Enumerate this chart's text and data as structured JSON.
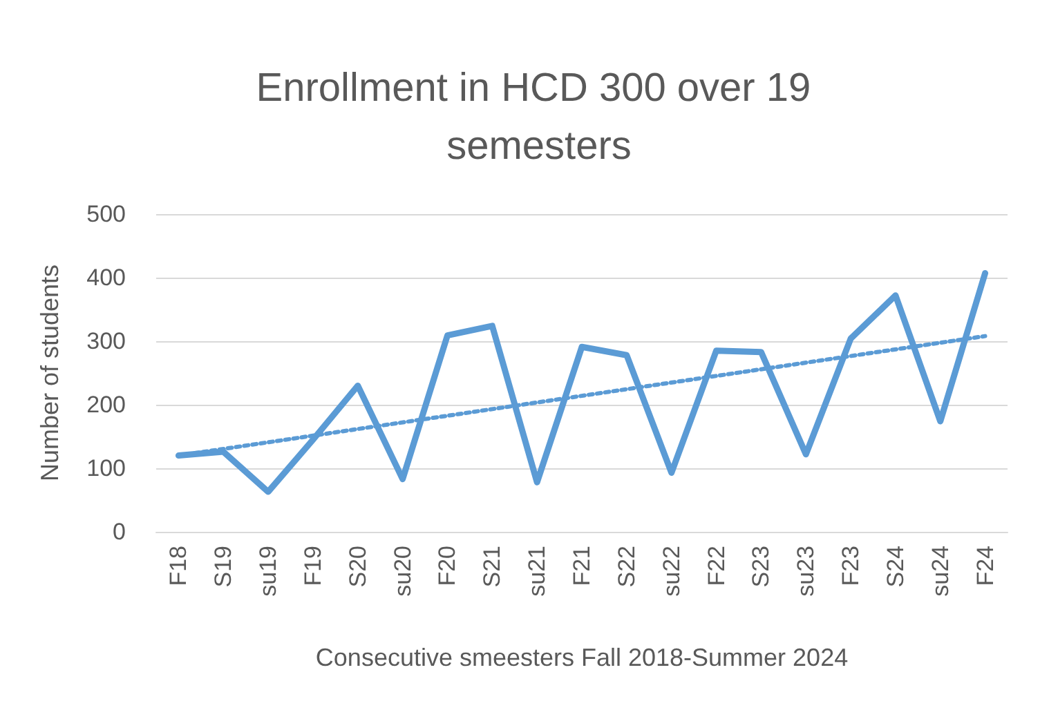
{
  "chart_data": {
    "type": "line",
    "title": "Enrollment in HCD 300 over 19 semesters",
    "xlabel": "Consecutive smeesters Fall 2018-Summer 2024",
    "ylabel": "Number of students",
    "categories": [
      "F18",
      "S19",
      "su19",
      "F19",
      "S20",
      "su20",
      "F20",
      "S21",
      "su21",
      "F21",
      "S22",
      "su22",
      "F22",
      "S23",
      "su23",
      "F23",
      "S24",
      "su24",
      "F24"
    ],
    "series": [
      {
        "color": "#5b9bd5",
        "line_style": "solid",
        "values": [
          120,
          126,
          63,
          145,
          230,
          83,
          309,
          324,
          78,
          291,
          278,
          93,
          285,
          283,
          122,
          304,
          372,
          174,
          407
        ]
      },
      {
        "color": "#5b9bd5",
        "line_style": "dotted",
        "x": [
          "F18",
          "F24"
        ],
        "values": [
          120,
          308
        ]
      }
    ],
    "ylim": [
      0,
      500
    ],
    "yticks": [
      0,
      100,
      200,
      300,
      400,
      500
    ],
    "grid": "y",
    "marker": "none"
  }
}
